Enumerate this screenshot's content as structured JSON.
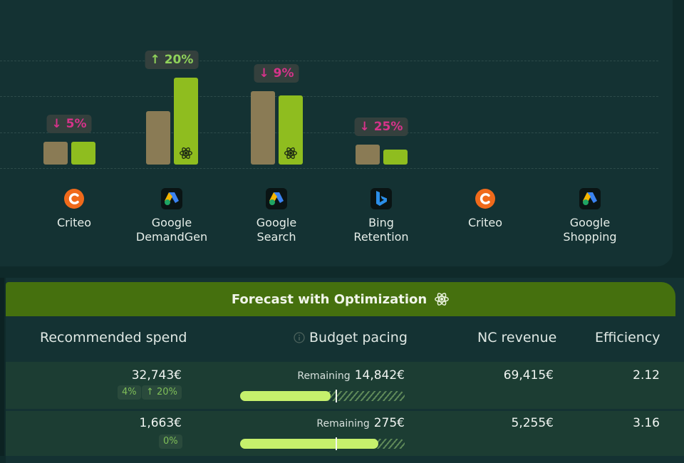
{
  "chart": {
    "groups": [
      {
        "badge": "↓ 5%",
        "direction": "down",
        "base": 0.34,
        "opt": 0.34,
        "atom": false
      },
      {
        "badge": "↑ 20%",
        "direction": "up",
        "base": 0.8,
        "opt": 1.3,
        "atom": true
      },
      {
        "badge": "↓ 9%",
        "direction": "down",
        "base": 1.1,
        "opt": 1.03,
        "atom": true
      },
      {
        "badge": "↓ 25%",
        "direction": "down",
        "base": 0.3,
        "opt": 0.22,
        "atom": false
      }
    ],
    "channels": [
      {
        "icon": "criteo-icon",
        "label_line1": "Criteo",
        "label_line2": ""
      },
      {
        "icon": "google-ads-icon",
        "label_line1": "Google",
        "label_line2": "DemandGen"
      },
      {
        "icon": "google-ads-icon",
        "label_line1": "Google",
        "label_line2": "Search"
      },
      {
        "icon": "bing-icon",
        "label_line1": "Bing",
        "label_line2": "Retention"
      },
      {
        "icon": "criteo-icon",
        "label_line1": "Criteo",
        "label_line2": ""
      },
      {
        "icon": "google-ads-icon",
        "label_line1": "Google",
        "label_line2": "Shopping"
      }
    ],
    "colors": {
      "baseline": "#8a7b55",
      "optimized": "#8fbd1f",
      "up": "#8fd15a",
      "down": "#d6338a"
    }
  },
  "forecast": {
    "title": "Forecast with Optimization",
    "columns": {
      "recommended_spend": "Recommended spend",
      "budget_pacing": "Budget pacing",
      "nc_revenue": "NC revenue",
      "efficiency": "Efficiency"
    },
    "rows": [
      {
        "spend": "32,743€",
        "share_chip": "4%",
        "change_chip": "↑ 20%",
        "remaining_label": "Remaining",
        "remaining_value": "14,842€",
        "pacing_fill": 0.55,
        "pacing_marker": 0.58,
        "nc_revenue": "69,415€",
        "efficiency": "2.12"
      },
      {
        "spend": "1,663€",
        "share_chip": "0%",
        "change_chip": "",
        "remaining_label": "Remaining",
        "remaining_value": "275€",
        "pacing_fill": 0.84,
        "pacing_marker": 0.58,
        "nc_revenue": "5,255€",
        "efficiency": "3.16"
      }
    ]
  }
}
